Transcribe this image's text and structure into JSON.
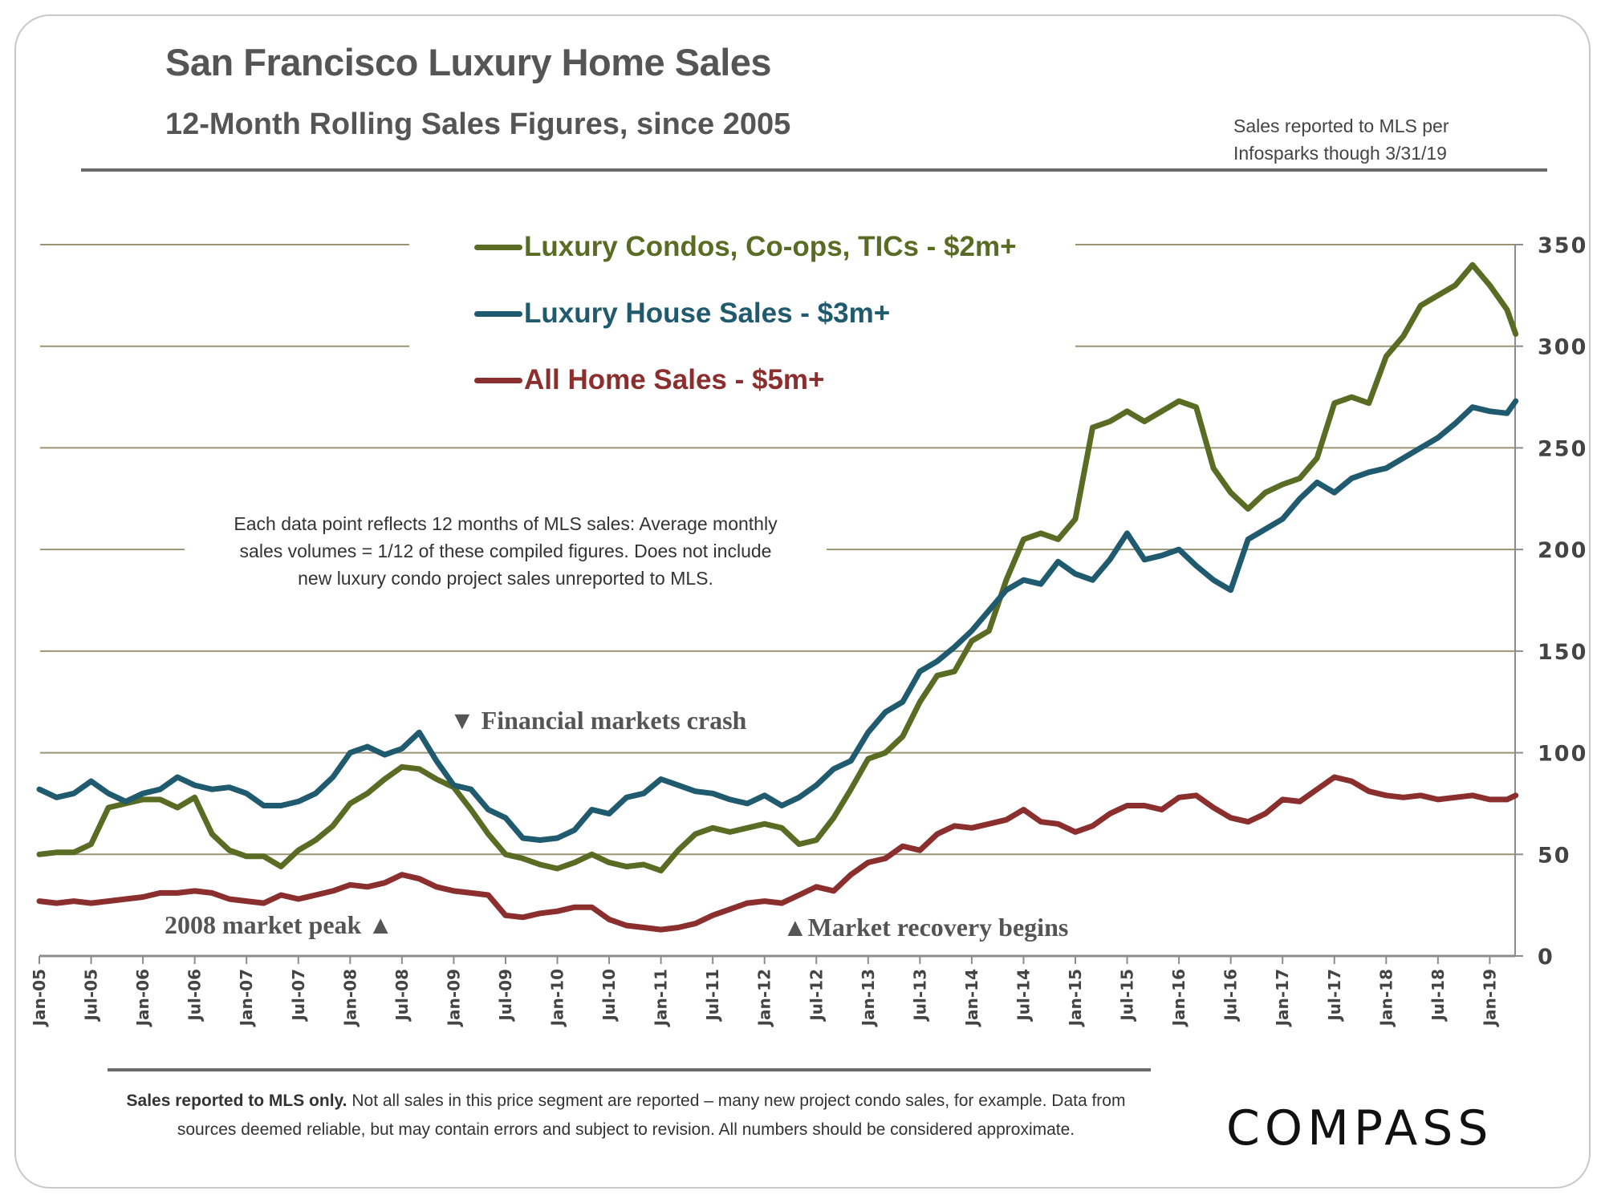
{
  "header": {
    "title": "San Francisco Luxury Home Sales",
    "subtitle": "12-Month Rolling Sales Figures, since 2005",
    "source_line1": "Sales reported to MLS per",
    "source_line2": "Infosparks though 3/31/19"
  },
  "notes": {
    "methodology_line1": "Each data point reflects 12 months of MLS sales:  Average monthly",
    "methodology_line2": "sales volumes = 1/12 of these compiled figures. Does not include",
    "methodology_line3": "new luxury condo project sales unreported to MLS."
  },
  "annotations": {
    "crash": "▼ Financial markets crash",
    "peak": "2008 market peak ▲",
    "recovery": "▲Market recovery begins"
  },
  "footer": {
    "disclaimer_bold": "Sales reported to MLS only.",
    "disclaimer_rest": " Not all sales in this price segment are reported – many new project condo sales, for example. Data from sources deemed reliable, but may contain errors and subject to revision. All numbers should be considered approximate.",
    "logo": "COMPASS"
  },
  "colors": {
    "condos": "#5a6b23",
    "houses": "#1f5a6e",
    "all5m": "#8b2e2e",
    "gridline": "#9a9474",
    "axis": "#8c8c8c",
    "text": "#555555"
  },
  "chart_data": {
    "type": "line",
    "title": "San Francisco Luxury Home Sales",
    "subtitle": "12-Month Rolling Sales Figures, since 2005",
    "xlabel": "",
    "ylabel": "",
    "ylim": [
      0,
      350
    ],
    "yticks": [
      0,
      50,
      100,
      150,
      200,
      250,
      300,
      350
    ],
    "y_axis_side": "right",
    "grid": true,
    "legend_position": "top-center",
    "x_start": "Jan-05",
    "x_step_months": 2,
    "x_last_month_index": 171,
    "xtick_labels": [
      "Jan-05",
      "Jul-05",
      "Jan-06",
      "Jul-06",
      "Jan-07",
      "Jul-07",
      "Jan-08",
      "Jul-08",
      "Jan-09",
      "Jul-09",
      "Jan-10",
      "Jul-10",
      "Jan-11",
      "Jul-11",
      "Jan-12",
      "Jul-12",
      "Jan-13",
      "Jul-13",
      "Jan-14",
      "Jul-14",
      "Jan-15",
      "Jul-15",
      "Jan-16",
      "Jul-16",
      "Jan-17",
      "Jul-17",
      "Jan-18",
      "Jul-18",
      "Jan-19"
    ],
    "series": [
      {
        "name": "Luxury Condos, Co-ops, TICs - $2m+",
        "key": "condos",
        "values": [
          50,
          51,
          51,
          55,
          73,
          75,
          77,
          77,
          73,
          78,
          60,
          52,
          49,
          49,
          44,
          52,
          57,
          64,
          75,
          80,
          87,
          93,
          92,
          87,
          83,
          72,
          60,
          50,
          48,
          45,
          43,
          46,
          50,
          46,
          44,
          45,
          42,
          52,
          60,
          63,
          61,
          63,
          65,
          63,
          55,
          57,
          68,
          82,
          97,
          100,
          108,
          125,
          138,
          140,
          155,
          160,
          185,
          205,
          208,
          205,
          215,
          260,
          263,
          268,
          263,
          268,
          273,
          270,
          240,
          228,
          220,
          228,
          232,
          235,
          245,
          272,
          275,
          272,
          295,
          305,
          320,
          325,
          330,
          340,
          330,
          318,
          306
        ]
      },
      {
        "name": "Luxury House Sales - $3m+",
        "key": "houses",
        "values": [
          82,
          78,
          80,
          86,
          80,
          76,
          80,
          82,
          88,
          84,
          82,
          83,
          80,
          74,
          74,
          76,
          80,
          88,
          100,
          103,
          99,
          102,
          110,
          96,
          84,
          82,
          72,
          68,
          58,
          57,
          58,
          62,
          72,
          70,
          78,
          80,
          87,
          84,
          81,
          80,
          77,
          75,
          79,
          74,
          78,
          84,
          92,
          96,
          110,
          120,
          125,
          140,
          145,
          152,
          160,
          170,
          180,
          185,
          183,
          194,
          188,
          185,
          195,
          208,
          195,
          197,
          200,
          192,
          185,
          180,
          205,
          210,
          215,
          225,
          233,
          228,
          235,
          238,
          240,
          245,
          250,
          255,
          262,
          270,
          268,
          267,
          273
        ]
      },
      {
        "name": "All Home Sales - $5m+",
        "key": "all5m",
        "values": [
          27,
          26,
          27,
          26,
          27,
          28,
          29,
          31,
          31,
          32,
          31,
          28,
          27,
          26,
          30,
          28,
          30,
          32,
          35,
          34,
          36,
          40,
          38,
          34,
          32,
          31,
          30,
          20,
          19,
          21,
          22,
          24,
          24,
          18,
          15,
          14,
          13,
          14,
          16,
          20,
          23,
          26,
          27,
          26,
          30,
          34,
          32,
          40,
          46,
          48,
          54,
          52,
          60,
          64,
          63,
          65,
          67,
          72,
          66,
          65,
          61,
          64,
          70,
          74,
          74,
          72,
          78,
          79,
          73,
          68,
          66,
          70,
          77,
          76,
          82,
          88,
          86,
          81,
          79,
          78,
          79,
          77,
          78,
          79,
          77,
          77,
          79
        ]
      }
    ],
    "annotations": [
      {
        "text": "Financial markets crash",
        "marker": "down-triangle",
        "x": "Sep-08"
      },
      {
        "text": "2008 market peak",
        "marker": "up-triangle",
        "x": "Jul-08"
      },
      {
        "text": "Market recovery begins",
        "marker": "up-triangle",
        "x": "Jan-12"
      }
    ]
  }
}
